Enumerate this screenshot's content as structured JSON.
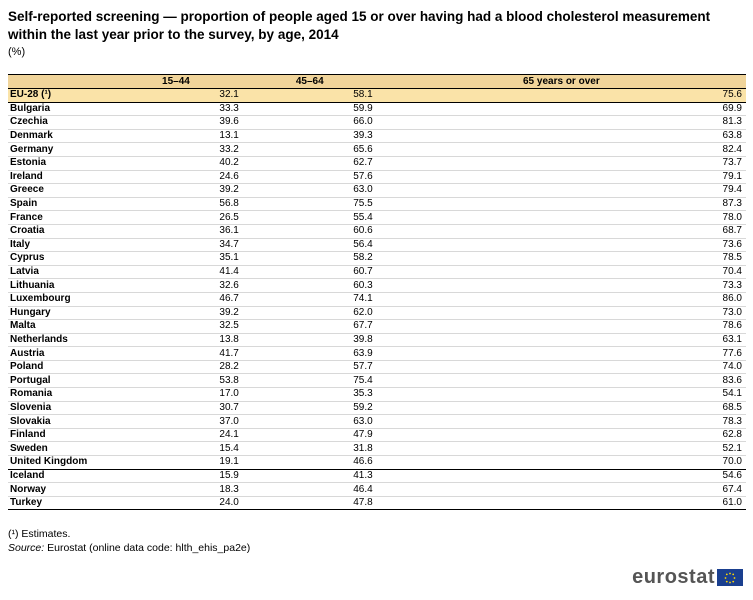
{
  "title": "Self-reported screening — proportion of people aged 15 or over having had a blood cholesterol measurement within the last year prior to the survey, by age, 2014",
  "unit": "(%)",
  "table": {
    "headers": [
      "",
      "15–44",
      "45–64",
      "65 years or over"
    ],
    "rows": [
      {
        "country": "EU-28 (¹)",
        "values": [
          "32.1",
          "58.1",
          "75.6"
        ]
      },
      {
        "country": "Bulgaria",
        "values": [
          "33.3",
          "59.9",
          "69.9"
        ]
      },
      {
        "country": "Czechia",
        "values": [
          "39.6",
          "66.0",
          "81.3"
        ]
      },
      {
        "country": "Denmark",
        "values": [
          "13.1",
          "39.3",
          "63.8"
        ]
      },
      {
        "country": "Germany",
        "values": [
          "33.2",
          "65.6",
          "82.4"
        ]
      },
      {
        "country": "Estonia",
        "values": [
          "40.2",
          "62.7",
          "73.7"
        ]
      },
      {
        "country": "Ireland",
        "values": [
          "24.6",
          "57.6",
          "79.1"
        ]
      },
      {
        "country": "Greece",
        "values": [
          "39.2",
          "63.0",
          "79.4"
        ]
      },
      {
        "country": "Spain",
        "values": [
          "56.8",
          "75.5",
          "87.3"
        ]
      },
      {
        "country": "France",
        "values": [
          "26.5",
          "55.4",
          "78.0"
        ]
      },
      {
        "country": "Croatia",
        "values": [
          "36.1",
          "60.6",
          "68.7"
        ]
      },
      {
        "country": "Italy",
        "values": [
          "34.7",
          "56.4",
          "73.6"
        ]
      },
      {
        "country": "Cyprus",
        "values": [
          "35.1",
          "58.2",
          "78.5"
        ]
      },
      {
        "country": "Latvia",
        "values": [
          "41.4",
          "60.7",
          "70.4"
        ]
      },
      {
        "country": "Lithuania",
        "values": [
          "32.6",
          "60.3",
          "73.3"
        ]
      },
      {
        "country": "Luxembourg",
        "values": [
          "46.7",
          "74.1",
          "86.0"
        ]
      },
      {
        "country": "Hungary",
        "values": [
          "39.2",
          "62.0",
          "73.0"
        ]
      },
      {
        "country": "Malta",
        "values": [
          "32.5",
          "67.7",
          "78.6"
        ]
      },
      {
        "country": "Netherlands",
        "values": [
          "13.8",
          "39.8",
          "63.1"
        ]
      },
      {
        "country": "Austria",
        "values": [
          "41.7",
          "63.9",
          "77.6"
        ]
      },
      {
        "country": "Poland",
        "values": [
          "28.2",
          "57.7",
          "74.0"
        ]
      },
      {
        "country": "Portugal",
        "values": [
          "53.8",
          "75.4",
          "83.6"
        ]
      },
      {
        "country": "Romania",
        "values": [
          "17.0",
          "35.3",
          "54.1"
        ]
      },
      {
        "country": "Slovenia",
        "values": [
          "30.7",
          "59.2",
          "68.5"
        ]
      },
      {
        "country": "Slovakia",
        "values": [
          "37.0",
          "63.0",
          "78.3"
        ]
      },
      {
        "country": "Finland",
        "values": [
          "24.1",
          "47.9",
          "62.8"
        ]
      },
      {
        "country": "Sweden",
        "values": [
          "15.4",
          "31.8",
          "52.1"
        ]
      },
      {
        "country": "United Kingdom",
        "values": [
          "19.1",
          "46.6",
          "70.0"
        ]
      },
      {
        "country": "Iceland",
        "values": [
          "15.9",
          "41.3",
          "54.6"
        ]
      },
      {
        "country": "Norway",
        "values": [
          "18.3",
          "46.4",
          "67.4"
        ]
      },
      {
        "country": "Turkey",
        "values": [
          "24.0",
          "47.8",
          "61.0"
        ]
      }
    ]
  },
  "footnote": "(¹) Estimates.",
  "source_label": "Source:",
  "source_text": " Eurostat (online data code: hlth_ehis_pa2e)",
  "logo_text": "eurostat",
  "colors": {
    "header_bg": "#f0d49a",
    "eu_row_bg": "#fae3a8",
    "logo_flag": "#1a3f8f"
  }
}
